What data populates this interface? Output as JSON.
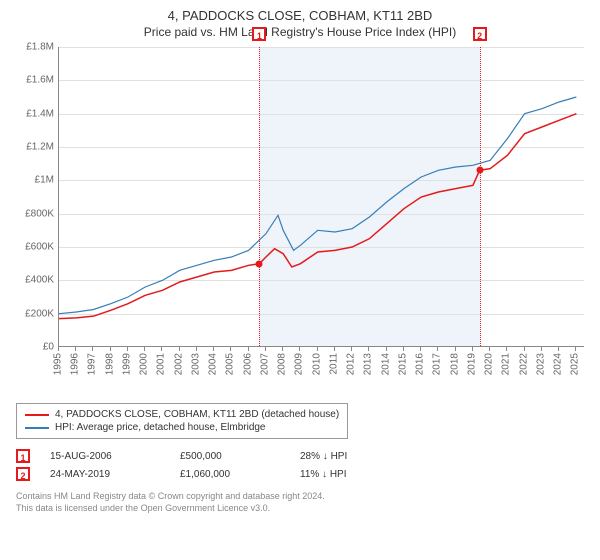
{
  "header": {
    "title": "4, PADDOCKS CLOSE, COBHAM, KT11 2BD",
    "subtitle": "Price paid vs. HM Land Registry's House Price Index (HPI)"
  },
  "chart": {
    "type": "line",
    "ylim": [
      0,
      1800000
    ],
    "ytick_step": 200000,
    "yticks": [
      "£0",
      "£200K",
      "£400K",
      "£600K",
      "£800K",
      "£1M",
      "£1.2M",
      "£1.4M",
      "£1.6M",
      "£1.8M"
    ],
    "xlim": [
      1995,
      2025.5
    ],
    "xticks": [
      1995,
      1996,
      1997,
      1998,
      1999,
      2000,
      2001,
      2002,
      2003,
      2004,
      2005,
      2006,
      2007,
      2008,
      2009,
      2010,
      2011,
      2012,
      2013,
      2014,
      2015,
      2016,
      2017,
      2018,
      2019,
      2020,
      2021,
      2022,
      2023,
      2024,
      2025
    ],
    "background_color": "#ffffff",
    "grid_color": "#e0e0e0",
    "band_color": "#e8f0f8",
    "band_range": [
      2006.6,
      2019.4
    ],
    "series": [
      {
        "name": "price_paid",
        "label": "4, PADDOCKS CLOSE, COBHAM, KT11 2BD (detached house)",
        "color": "#e41a1c",
        "width": 1.5,
        "data": [
          [
            1995,
            170000
          ],
          [
            1996,
            175000
          ],
          [
            1997,
            185000
          ],
          [
            1998,
            220000
          ],
          [
            1999,
            260000
          ],
          [
            2000,
            310000
          ],
          [
            2001,
            340000
          ],
          [
            2002,
            390000
          ],
          [
            2003,
            420000
          ],
          [
            2004,
            450000
          ],
          [
            2005,
            460000
          ],
          [
            2006,
            490000
          ],
          [
            2006.62,
            500000
          ],
          [
            2007,
            540000
          ],
          [
            2007.5,
            590000
          ],
          [
            2008,
            560000
          ],
          [
            2008.5,
            480000
          ],
          [
            2009,
            500000
          ],
          [
            2010,
            570000
          ],
          [
            2011,
            580000
          ],
          [
            2012,
            600000
          ],
          [
            2013,
            650000
          ],
          [
            2014,
            740000
          ],
          [
            2015,
            830000
          ],
          [
            2016,
            900000
          ],
          [
            2017,
            930000
          ],
          [
            2018,
            950000
          ],
          [
            2019,
            970000
          ],
          [
            2019.39,
            1060000
          ],
          [
            2020,
            1070000
          ],
          [
            2021,
            1150000
          ],
          [
            2022,
            1280000
          ],
          [
            2023,
            1320000
          ],
          [
            2024,
            1360000
          ],
          [
            2025,
            1400000
          ]
        ]
      },
      {
        "name": "hpi",
        "label": "HPI: Average price, detached house, Elmbridge",
        "color": "#377eb8",
        "width": 1.2,
        "data": [
          [
            1995,
            200000
          ],
          [
            1996,
            210000
          ],
          [
            1997,
            225000
          ],
          [
            1998,
            260000
          ],
          [
            1999,
            300000
          ],
          [
            2000,
            360000
          ],
          [
            2001,
            400000
          ],
          [
            2002,
            460000
          ],
          [
            2003,
            490000
          ],
          [
            2004,
            520000
          ],
          [
            2005,
            540000
          ],
          [
            2006,
            580000
          ],
          [
            2007,
            680000
          ],
          [
            2007.7,
            790000
          ],
          [
            2008,
            700000
          ],
          [
            2008.6,
            580000
          ],
          [
            2009,
            610000
          ],
          [
            2010,
            700000
          ],
          [
            2011,
            690000
          ],
          [
            2012,
            710000
          ],
          [
            2013,
            780000
          ],
          [
            2014,
            870000
          ],
          [
            2015,
            950000
          ],
          [
            2016,
            1020000
          ],
          [
            2017,
            1060000
          ],
          [
            2018,
            1080000
          ],
          [
            2019,
            1090000
          ],
          [
            2020,
            1120000
          ],
          [
            2021,
            1250000
          ],
          [
            2022,
            1400000
          ],
          [
            2023,
            1430000
          ],
          [
            2024,
            1470000
          ],
          [
            2025,
            1500000
          ]
        ]
      }
    ],
    "reference_lines": [
      {
        "x": 2006.62,
        "color": "#e41a1c",
        "marker": "1"
      },
      {
        "x": 2019.39,
        "color": "#e41a1c",
        "marker": "2"
      }
    ],
    "sale_points": [
      {
        "x": 2006.62,
        "y": 500000,
        "color": "#e41a1c"
      },
      {
        "x": 2019.39,
        "y": 1060000,
        "color": "#e41a1c"
      }
    ]
  },
  "sales": [
    {
      "marker": "1",
      "date": "15-AUG-2006",
      "price": "£500,000",
      "delta": "28% ↓ HPI",
      "color": "#e41a1c"
    },
    {
      "marker": "2",
      "date": "24-MAY-2019",
      "price": "£1,060,000",
      "delta": "11% ↓ HPI",
      "color": "#e41a1c"
    }
  ],
  "footer": {
    "line1": "Contains HM Land Registry data © Crown copyright and database right 2024.",
    "line2": "This data is licensed under the Open Government Licence v3.0."
  }
}
